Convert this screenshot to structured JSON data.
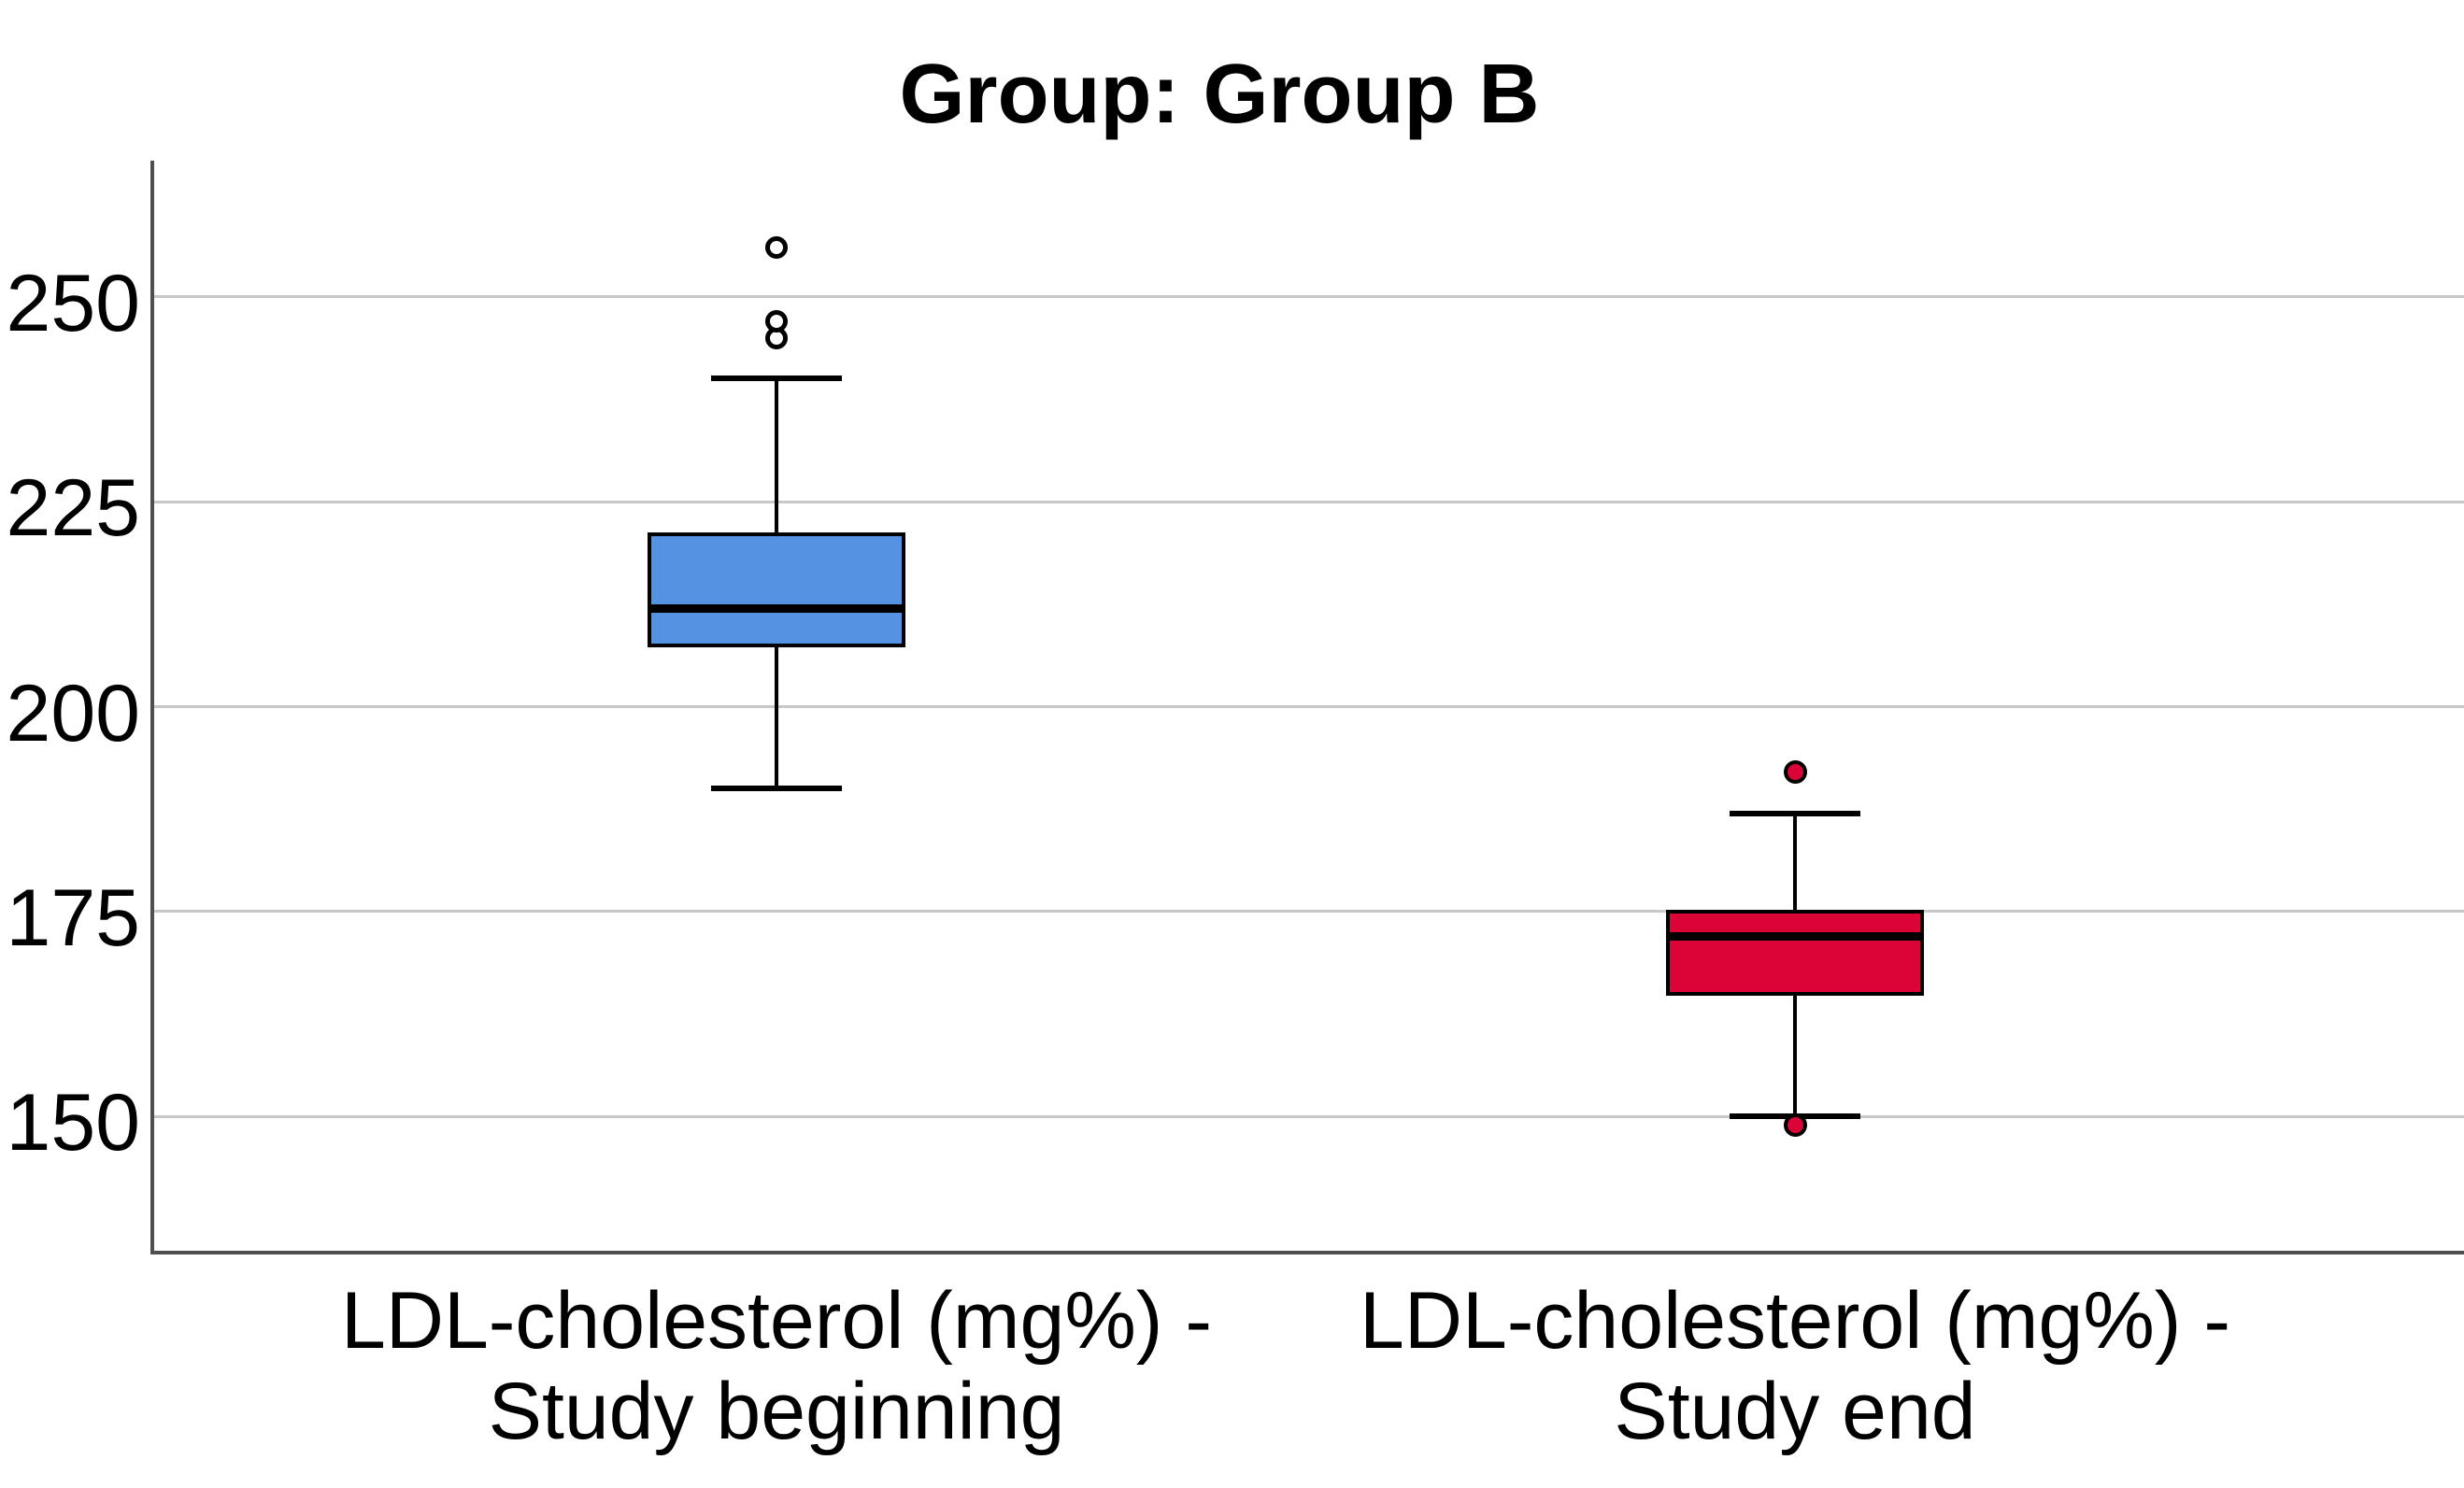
{
  "chart_data": {
    "type": "boxplot",
    "title": "Group: Group B",
    "categories": [
      "LDL-cholesterol (mg%) -\nStudy beginning",
      "LDL-cholesterol (mg%) -\nStudy end"
    ],
    "xlabel": "",
    "ylabel": "",
    "yticks": [
      150,
      175,
      200,
      225,
      250
    ],
    "ylim": [
      133.4,
      266.6
    ],
    "grid": "horizontal",
    "legend": "none",
    "series": [
      {
        "name": "LDL-cholesterol (mg%) - Study beginning",
        "box_color": "#5593e2",
        "whisker_low": 190,
        "q1": 207.5,
        "median": 212,
        "q3": 221,
        "whisker_high": 240,
        "outliers": [
          245,
          247,
          256
        ],
        "outlier_style": "open"
      },
      {
        "name": "LDL-cholesterol (mg%) - Study end",
        "box_color": "#da0536",
        "whisker_low": 150,
        "q1": 165,
        "median": 172,
        "q3": 175,
        "whisker_high": 187,
        "outliers": [
          149,
          192
        ],
        "outlier_style": "filled"
      }
    ]
  },
  "colors": {
    "grid": "#c8c8c8",
    "axis": "#4f4f4f",
    "line": "#000000",
    "open_outlier_fill": "#ffffff",
    "text": "#000000",
    "background": "#ffffff"
  }
}
